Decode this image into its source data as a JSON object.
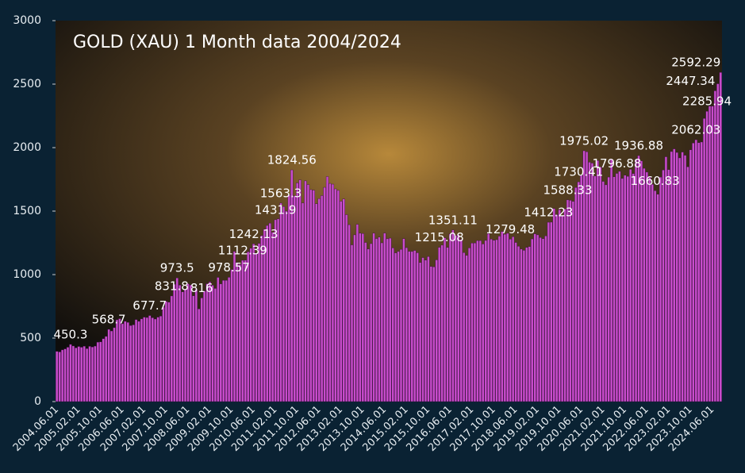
{
  "chart_data": {
    "type": "bar",
    "title": "GOLD (XAU) 1 Month data 2004/2024",
    "color": "#c84ccc",
    "categories": [
      "2004.06.01",
      null,
      null,
      null,
      null,
      null,
      null,
      null,
      "2005.02.01",
      null,
      null,
      null,
      null,
      null,
      null,
      null,
      "2005.10.01",
      null,
      null,
      null,
      null,
      null,
      null,
      null,
      "2006.06.01",
      null,
      null,
      null,
      null,
      null,
      null,
      null,
      "2007.02.01",
      null,
      null,
      null,
      null,
      null,
      null,
      null,
      "2007.10.01",
      null,
      null,
      null,
      null,
      null,
      null,
      null,
      "2008.06.01",
      null,
      null,
      null,
      null,
      null,
      null,
      null,
      "2009.02.01",
      null,
      null,
      null,
      null,
      null,
      null,
      null,
      "2009.10.01",
      null,
      null,
      null,
      null,
      null,
      null,
      null,
      "2010.06.01",
      null,
      null,
      null,
      null,
      null,
      null,
      null,
      "2011.02.01",
      null,
      null,
      null,
      null,
      null,
      null,
      null,
      "2011.10.01",
      null,
      null,
      null,
      null,
      null,
      null,
      null,
      "2012.06.01",
      null,
      null,
      null,
      null,
      null,
      null,
      null,
      "2013.02.01",
      null,
      null,
      null,
      null,
      null,
      null,
      null,
      "2013.10.01",
      null,
      null,
      null,
      null,
      null,
      null,
      null,
      "2014.06.01",
      null,
      null,
      null,
      null,
      null,
      null,
      null,
      "2015.02.01",
      null,
      null,
      null,
      null,
      null,
      null,
      null,
      "2015.10.01",
      null,
      null,
      null,
      null,
      null,
      null,
      null,
      "2016.06.01",
      null,
      null,
      null,
      null,
      null,
      null,
      null,
      "2017.02.01",
      null,
      null,
      null,
      null,
      null,
      null,
      null,
      "2017.10.01",
      null,
      null,
      null,
      null,
      null,
      null,
      null,
      "2018.06.01",
      null,
      null,
      null,
      null,
      null,
      null,
      null,
      "2019.02.01",
      null,
      null,
      null,
      null,
      null,
      null,
      null,
      "2019.10.01",
      null,
      null,
      null,
      null,
      null,
      null,
      null,
      "2020.06.01",
      null,
      null,
      null,
      null,
      null,
      null,
      null,
      "2021.02.01",
      null,
      null,
      null,
      null,
      null,
      null,
      null,
      "2021.10.01",
      null,
      null,
      null,
      null,
      null,
      null,
      null,
      "2022.06.01",
      null,
      null,
      null,
      null,
      null,
      null,
      null,
      "2023.02.01",
      null,
      null,
      null,
      null,
      null,
      null,
      null,
      "2023.10.01",
      null,
      null,
      null,
      null,
      null,
      null,
      null,
      "2024.06.01",
      null,
      null,
      null
    ],
    "values": [
      395,
      391,
      407,
      415,
      428,
      450.3,
      438,
      423,
      434,
      428,
      436,
      417,
      435,
      430,
      437,
      468,
      470,
      495,
      513,
      568.7,
      556,
      582,
      644,
      653,
      613,
      632,
      624,
      599,
      604,
      646,
      632,
      651,
      665,
      662,
      677.7,
      660,
      650,
      665,
      673,
      743,
      789,
      783,
      831.8,
      924,
      973.5,
      917,
      864,
      885,
      928,
      918,
      833,
      884,
      730,
      816,
      870,
      928,
      943,
      916,
      891,
      978,
      927,
      955,
      955,
      978.57,
      1040,
      1182,
      1096,
      1080,
      1112.39,
      1113,
      1179,
      1207,
      1242.13,
      1169,
      1246,
      1307,
      1357,
      1387,
      1405,
      1333,
      1431.9,
      1439,
      1563.3,
      1536,
      1500,
      1627,
      1824.56,
      1620,
      1722,
      1746,
      1564,
      1738,
      1709,
      1669,
      1664,
      1558,
      1598,
      1622,
      1687,
      1772,
      1718,
      1712,
      1675,
      1663,
      1578,
      1595,
      1472,
      1393,
      1234,
      1313,
      1396,
      1326,
      1323,
      1253,
      1202,
      1244,
      1326,
      1284,
      1295,
      1250,
      1327,
      1282,
      1287,
      1210,
      1171,
      1182,
      1199,
      1283,
      1212,
      1183,
      1182,
      1190,
      1172,
      1095,
      1134,
      1114,
      1142,
      1064,
      1061,
      1116,
      1215.08,
      1232,
      1290,
      1214,
      1321,
      1351.11,
      1309,
      1315,
      1276,
      1173,
      1151,
      1210,
      1248,
      1249,
      1268,
      1268,
      1241,
      1269,
      1322,
      1280,
      1270,
      1275,
      1303,
      1339,
      1318,
      1325,
      1279.48,
      1298,
      1253,
      1223,
      1201,
      1191,
      1214,
      1221,
      1281,
      1321,
      1313,
      1292,
      1283,
      1305,
      1412.23,
      1413,
      1520,
      1472,
      1511,
      1463,
      1517,
      1588.33,
      1585,
      1577,
      1686,
      1730.41,
      1781,
      1975.02,
      1967,
      1885,
      1878,
      1776,
      1898,
      1847,
      1734,
      1707,
      1768,
      1906,
      1770,
      1796.88,
      1813,
      1757,
      1783,
      1774,
      1829,
      1796,
      1908,
      1936.88,
      1896,
      1837,
      1807,
      1765,
      1711,
      1660.83,
      1633,
      1768,
      1824,
      1928,
      1827,
      1969,
      1990,
      1962,
      1919,
      1965,
      1940,
      1849,
      1983,
      2036,
      2062.03,
      2039,
      2044,
      2230,
      2285.94,
      2327,
      2326,
      2447.34,
      2503,
      2592.29
    ],
    "value_labels": [
      null,
      null,
      null,
      null,
      null,
      "450.3",
      null,
      null,
      null,
      null,
      null,
      null,
      null,
      null,
      null,
      null,
      null,
      null,
      null,
      "568.7",
      null,
      null,
      null,
      null,
      null,
      null,
      null,
      null,
      null,
      null,
      null,
      null,
      null,
      null,
      "677.7",
      null,
      null,
      null,
      null,
      null,
      null,
      null,
      "831.8",
      null,
      "973.5",
      null,
      null,
      null,
      null,
      null,
      null,
      null,
      null,
      "816",
      null,
      null,
      null,
      null,
      null,
      null,
      null,
      null,
      null,
      "978.57",
      null,
      null,
      null,
      null,
      "1112.39",
      null,
      null,
      null,
      "1242.13",
      null,
      null,
      null,
      null,
      null,
      null,
      null,
      "1431.9",
      null,
      "1563.3",
      null,
      null,
      null,
      "1824.56",
      null,
      null,
      null,
      null,
      null,
      null,
      null,
      null,
      null,
      null,
      null,
      null,
      null,
      null,
      null,
      null,
      null,
      null,
      null,
      null,
      null,
      null,
      null,
      null,
      null,
      null,
      null,
      null,
      null,
      null,
      null,
      null,
      null,
      null,
      null,
      null,
      null,
      null,
      null,
      null,
      null,
      null,
      null,
      null,
      null,
      null,
      null,
      null,
      null,
      null,
      null,
      null,
      null,
      "1215.08",
      null,
      null,
      null,
      null,
      "1351.11",
      null,
      null,
      null,
      null,
      null,
      null,
      null,
      null,
      null,
      null,
      null,
      null,
      null,
      null,
      null,
      null,
      null,
      null,
      null,
      null,
      "1279.48",
      null,
      null,
      null,
      null,
      null,
      null,
      null,
      null,
      null,
      null,
      null,
      null,
      null,
      "1412.23",
      null,
      null,
      null,
      null,
      null,
      null,
      "1588.33",
      null,
      null,
      null,
      "1730.41",
      null,
      "1975.02",
      null,
      null,
      null,
      null,
      null,
      null,
      null,
      null,
      null,
      null,
      null,
      "1796.88",
      null,
      null,
      null,
      null,
      null,
      null,
      null,
      "1936.88",
      null,
      null,
      null,
      null,
      null,
      "1660.83",
      null,
      null,
      null,
      null,
      null,
      null,
      null,
      null,
      null,
      null,
      null,
      null,
      null,
      null,
      "2062.03",
      null,
      null,
      null,
      "2285.94",
      null,
      null,
      "2447.34",
      null,
      "2592.29"
    ],
    "ylim": [
      0,
      3000
    ],
    "yticks": [
      0,
      500,
      1000,
      1500,
      2000,
      2500,
      3000
    ],
    "grid": false
  }
}
